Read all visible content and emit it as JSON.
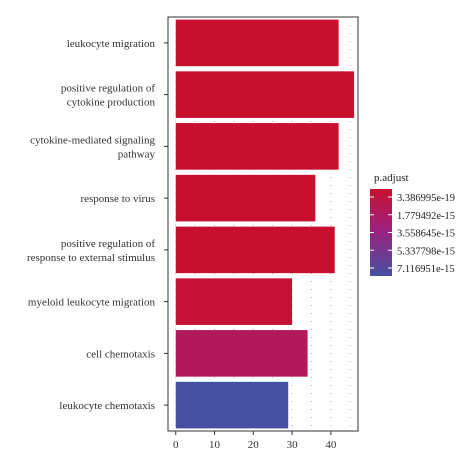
{
  "chart_data": {
    "type": "bar",
    "orientation": "horizontal",
    "categories": [
      "leukocyte migration",
      "positive regulation of cytokine production",
      "cytokine-mediated signaling pathway",
      "response to virus",
      "positive regulation of response to external stimulus",
      "myeloid leukocyte migration",
      "cell chemotaxis",
      "leukocyte chemotaxis"
    ],
    "category_lines": [
      [
        "leukocyte migration"
      ],
      [
        "positive regulation of",
        "cytokine production"
      ],
      [
        "cytokine-mediated signaling",
        "pathway"
      ],
      [
        "response to virus"
      ],
      [
        "positive regulation of",
        "response to external stimulus"
      ],
      [
        "myeloid leukocyte migration"
      ],
      [
        "cell chemotaxis"
      ],
      [
        "leukocyte chemotaxis"
      ]
    ],
    "values": [
      42,
      46,
      42,
      36,
      41,
      30,
      34,
      29
    ],
    "p_adjust": [
      3.4e-19,
      3.4e-19,
      3.4e-19,
      3.4e-19,
      3.4e-19,
      3e-16,
      1.8e-15,
      7.1e-15
    ],
    "xlim": [
      -2,
      47
    ],
    "xticks": [
      "0",
      "10",
      "20",
      "30",
      "40"
    ],
    "xtick_values": [
      0,
      10,
      20,
      30,
      40
    ],
    "xlabel": "",
    "ylabel": "",
    "title": "",
    "grid": true,
    "legend": {
      "title": "p.adjust",
      "placement": "right",
      "labels": [
        "3.386995e-19",
        "1.779492e-15",
        "3.558645e-15",
        "5.337798e-15",
        "7.116951e-15"
      ],
      "values": [
        3.386995e-19,
        1.779492e-15,
        3.558645e-15,
        5.337798e-15,
        7.116951e-15
      ],
      "color_low": "#C8102E",
      "color_mid": "#A0207E",
      "color_high": "#4650A0"
    }
  }
}
